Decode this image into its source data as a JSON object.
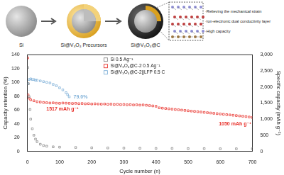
{
  "schematic": {
    "steps": [
      "Si",
      "Si@V₃O₄ Precursors",
      "Si@V₃O₄@C"
    ],
    "features": [
      "·Relieving the mechanical strain",
      "·Ion-electronic dual conductivity layer",
      "·High capacity"
    ]
  },
  "chart_data": {
    "type": "scatter",
    "x_label": "Cycle number (n)",
    "y_label": "Capacity retention (%)",
    "y2_label": "Specific capacity (mAh g⁻¹)",
    "xlim": [
      0,
      700
    ],
    "xticks": [
      0,
      100,
      200,
      300,
      400,
      500,
      600,
      700
    ],
    "ylim": [
      0,
      140
    ],
    "yticks": [
      0,
      20,
      40,
      60,
      80,
      100,
      120,
      140
    ],
    "y2lim": [
      0,
      3000
    ],
    "y2ticks": [
      0,
      500,
      1000,
      1500,
      2000,
      2500,
      3000
    ],
    "grid": false,
    "legend": "top",
    "series": [
      {
        "name": "Si 0.5 Ag⁻¹",
        "color": "#8c8c8c",
        "marker": "square",
        "axis": "y2",
        "x": [
          1,
          3,
          5,
          8,
          10,
          15,
          20,
          25,
          30,
          40,
          50,
          60,
          80,
          100,
          150,
          200,
          250,
          300,
          350,
          400,
          450,
          500,
          550,
          600,
          650,
          700
        ],
        "values": [
          2600,
          2100,
          1700,
          1300,
          1000,
          700,
          500,
          380,
          300,
          220,
          180,
          160,
          140,
          130,
          120,
          110,
          105,
          100,
          95,
          90,
          90,
          85,
          85,
          80,
          80,
          80
        ]
      },
      {
        "name": "Si@V₃O₄@C-2 0.5 Ag⁻¹",
        "color": "#e8302a",
        "marker": "square",
        "axis": "y2",
        "x": [
          1,
          2,
          5,
          10,
          20,
          30,
          40,
          50,
          60,
          70,
          80,
          90,
          100,
          110,
          120,
          130,
          140,
          150,
          160,
          170,
          180,
          190,
          200,
          210,
          220,
          230,
          240,
          250,
          260,
          270,
          280,
          290,
          300,
          310,
          320,
          330,
          340,
          350,
          360,
          370,
          380,
          390,
          400,
          410,
          420,
          430,
          440,
          450,
          460,
          470,
          480,
          490,
          500,
          510,
          520,
          530,
          540,
          550,
          560,
          570,
          580,
          590,
          600,
          610,
          620,
          630,
          640,
          650,
          660,
          670,
          680,
          690,
          700
        ],
        "values": [
          2900,
          1750,
          1650,
          1600,
          1570,
          1540,
          1530,
          1517,
          1510,
          1500,
          1505,
          1495,
          1490,
          1500,
          1495,
          1490,
          1485,
          1490,
          1480,
          1485,
          1475,
          1480,
          1470,
          1475,
          1470,
          1465,
          1470,
          1460,
          1465,
          1455,
          1460,
          1450,
          1455,
          1445,
          1450,
          1440,
          1445,
          1435,
          1440,
          1430,
          1420,
          1410,
          1400,
          1350,
          1340,
          1330,
          1320,
          1310,
          1300,
          1290,
          1280,
          1270,
          1260,
          1250,
          1240,
          1230,
          1220,
          1210,
          1200,
          1190,
          1180,
          1170,
          1160,
          1150,
          1140,
          1130,
          1120,
          1110,
          1100,
          1090,
          1080,
          1065,
          1050
        ]
      },
      {
        "name": "Si@V₃O₄@C-2||LFP 0.5 C",
        "color": "#7fb0d8",
        "marker": "square",
        "axis": "y",
        "x": [
          1,
          5,
          10,
          15,
          20,
          25,
          30,
          40,
          50,
          60,
          70,
          80,
          90,
          100,
          110,
          120,
          125,
          130
        ],
        "values": [
          98,
          104,
          105,
          104,
          104,
          103,
          103,
          102,
          101,
          100,
          99,
          97,
          95,
          92,
          89,
          85,
          82,
          79
        ]
      }
    ],
    "annotations": [
      {
        "text": "79.0%",
        "x": 130,
        "y": 79,
        "axis": "y",
        "color": "#7fb0d8"
      },
      {
        "text": "1517 mAh g⁻¹",
        "x": 50,
        "y": 1517,
        "axis": "y2",
        "color": "#e8302a"
      },
      {
        "text": "1050 mAh g⁻¹",
        "x": 700,
        "y": 1050,
        "axis": "y2",
        "color": "#e8302a"
      }
    ]
  }
}
